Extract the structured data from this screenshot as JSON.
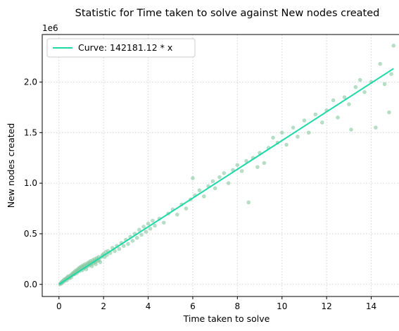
{
  "chart_data": {
    "type": "scatter",
    "title": "Statistic for Time taken to solve against New nodes created",
    "xlabel": "Time taken to solve",
    "ylabel": "New nodes created",
    "y_offset_label": "1e6",
    "xlim": [
      -0.75,
      15.75
    ],
    "ylim": [
      -0.12,
      2.47
    ],
    "x_ticks": [
      0,
      2,
      4,
      6,
      8,
      10,
      12,
      14
    ],
    "y_ticks": [
      0.0,
      0.5,
      1.0,
      1.5,
      2.0
    ],
    "y_tick_labels": [
      "0.0",
      "0.5",
      "1.0",
      "1.5",
      "2.0"
    ],
    "grid": true,
    "legend_position": "top-left",
    "fit_line": {
      "name": "Curve: 142181.12 * x",
      "slope_per_1e6": 0.14218112,
      "x_range": [
        0,
        15
      ],
      "color": "#1fd8a8"
    },
    "scatter_color": "#8cc9a4",
    "points": [
      [
        0.05,
        0.0
      ],
      [
        0.08,
        0.01
      ],
      [
        0.1,
        0.02
      ],
      [
        0.12,
        0.01
      ],
      [
        0.15,
        0.03
      ],
      [
        0.18,
        0.02
      ],
      [
        0.2,
        0.04
      ],
      [
        0.22,
        0.03
      ],
      [
        0.25,
        0.05
      ],
      [
        0.28,
        0.04
      ],
      [
        0.3,
        0.05
      ],
      [
        0.32,
        0.06
      ],
      [
        0.35,
        0.04
      ],
      [
        0.38,
        0.07
      ],
      [
        0.4,
        0.06
      ],
      [
        0.42,
        0.08
      ],
      [
        0.45,
        0.07
      ],
      [
        0.48,
        0.06
      ],
      [
        0.5,
        0.08
      ],
      [
        0.52,
        0.09
      ],
      [
        0.55,
        0.07
      ],
      [
        0.58,
        0.1
      ],
      [
        0.6,
        0.09
      ],
      [
        0.62,
        0.11
      ],
      [
        0.65,
        0.1
      ],
      [
        0.68,
        0.12
      ],
      [
        0.7,
        0.1
      ],
      [
        0.72,
        0.13
      ],
      [
        0.75,
        0.12
      ],
      [
        0.78,
        0.14
      ],
      [
        0.8,
        0.11
      ],
      [
        0.82,
        0.13
      ],
      [
        0.85,
        0.15
      ],
      [
        0.88,
        0.14
      ],
      [
        0.9,
        0.16
      ],
      [
        0.92,
        0.13
      ],
      [
        0.95,
        0.17
      ],
      [
        0.98,
        0.15
      ],
      [
        1.0,
        0.16
      ],
      [
        1.02,
        0.18
      ],
      [
        1.05,
        0.14
      ],
      [
        1.08,
        0.17
      ],
      [
        1.1,
        0.19
      ],
      [
        1.12,
        0.16
      ],
      [
        1.15,
        0.18
      ],
      [
        1.18,
        0.2
      ],
      [
        1.2,
        0.17
      ],
      [
        1.22,
        0.15
      ],
      [
        1.25,
        0.19
      ],
      [
        1.28,
        0.21
      ],
      [
        1.3,
        0.18
      ],
      [
        1.32,
        0.2
      ],
      [
        1.35,
        0.22
      ],
      [
        1.38,
        0.19
      ],
      [
        1.4,
        0.21
      ],
      [
        1.42,
        0.23
      ],
      [
        1.45,
        0.2
      ],
      [
        1.48,
        0.18
      ],
      [
        1.5,
        0.22
      ],
      [
        1.52,
        0.24
      ],
      [
        1.55,
        0.21
      ],
      [
        1.58,
        0.23
      ],
      [
        1.6,
        0.25
      ],
      [
        1.62,
        0.22
      ],
      [
        1.65,
        0.2
      ],
      [
        1.68,
        0.24
      ],
      [
        1.7,
        0.26
      ],
      [
        1.72,
        0.23
      ],
      [
        1.75,
        0.25
      ],
      [
        1.78,
        0.27
      ],
      [
        1.8,
        0.24
      ],
      [
        1.85,
        0.22
      ],
      [
        1.9,
        0.27
      ],
      [
        1.95,
        0.29
      ],
      [
        2.0,
        0.3
      ],
      [
        2.05,
        0.27
      ],
      [
        2.1,
        0.32
      ],
      [
        2.15,
        0.29
      ],
      [
        2.2,
        0.33
      ],
      [
        2.3,
        0.31
      ],
      [
        2.4,
        0.36
      ],
      [
        2.5,
        0.33
      ],
      [
        2.6,
        0.38
      ],
      [
        2.7,
        0.35
      ],
      [
        2.8,
        0.41
      ],
      [
        2.9,
        0.38
      ],
      [
        3.0,
        0.44
      ],
      [
        3.1,
        0.4
      ],
      [
        3.2,
        0.47
      ],
      [
        3.3,
        0.43
      ],
      [
        3.4,
        0.5
      ],
      [
        3.5,
        0.46
      ],
      [
        3.6,
        0.54
      ],
      [
        3.7,
        0.49
      ],
      [
        3.8,
        0.57
      ],
      [
        3.9,
        0.52
      ],
      [
        4.0,
        0.6
      ],
      [
        4.1,
        0.55
      ],
      [
        4.2,
        0.63
      ],
      [
        4.3,
        0.58
      ],
      [
        4.5,
        0.65
      ],
      [
        4.7,
        0.61
      ],
      [
        4.9,
        0.7
      ],
      [
        5.1,
        0.74
      ],
      [
        5.3,
        0.69
      ],
      [
        5.5,
        0.79
      ],
      [
        5.7,
        0.75
      ],
      [
        5.9,
        0.84
      ],
      [
        6.0,
        1.05
      ],
      [
        6.1,
        0.88
      ],
      [
        6.3,
        0.93
      ],
      [
        6.5,
        0.87
      ],
      [
        6.7,
        0.97
      ],
      [
        6.9,
        1.02
      ],
      [
        7.0,
        0.95
      ],
      [
        7.2,
        1.06
      ],
      [
        7.4,
        1.1
      ],
      [
        7.6,
        1.0
      ],
      [
        7.8,
        1.13
      ],
      [
        8.0,
        1.18
      ],
      [
        8.2,
        1.12
      ],
      [
        8.4,
        1.22
      ],
      [
        8.5,
        0.81
      ],
      [
        8.7,
        1.25
      ],
      [
        8.9,
        1.16
      ],
      [
        9.0,
        1.3
      ],
      [
        9.2,
        1.2
      ],
      [
        9.4,
        1.35
      ],
      [
        9.6,
        1.45
      ],
      [
        9.8,
        1.4
      ],
      [
        10.0,
        1.5
      ],
      [
        10.2,
        1.38
      ],
      [
        10.5,
        1.55
      ],
      [
        10.7,
        1.46
      ],
      [
        11.0,
        1.62
      ],
      [
        11.2,
        1.5
      ],
      [
        11.5,
        1.68
      ],
      [
        11.8,
        1.6
      ],
      [
        12.0,
        1.72
      ],
      [
        12.3,
        1.82
      ],
      [
        12.5,
        1.65
      ],
      [
        12.8,
        1.85
      ],
      [
        13.0,
        1.78
      ],
      [
        13.1,
        1.53
      ],
      [
        13.3,
        1.95
      ],
      [
        13.5,
        2.02
      ],
      [
        13.7,
        1.9
      ],
      [
        14.0,
        2.0
      ],
      [
        14.2,
        1.55
      ],
      [
        14.4,
        2.18
      ],
      [
        14.6,
        1.98
      ],
      [
        14.8,
        1.7
      ],
      [
        14.9,
        2.08
      ],
      [
        15.0,
        2.36
      ]
    ]
  }
}
